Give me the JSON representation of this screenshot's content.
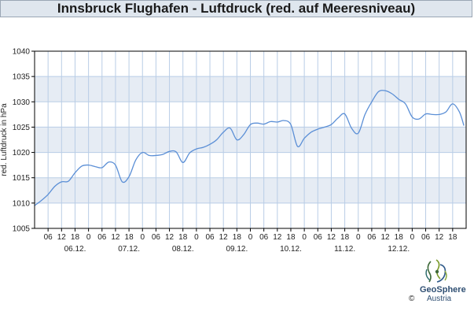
{
  "title": "Innsbruck Flughafen - Luftdruck (red. auf Meeresniveau)",
  "logo": {
    "name": "GeoSphere",
    "sub": "Austria",
    "copyright": "©"
  },
  "colors": {
    "line": "#5b8fd6",
    "band": "#e6ecf4",
    "grid": "#b9cde6",
    "title_bg": "#dfe6ee"
  },
  "chart_data": {
    "type": "line",
    "title": "Innsbruck Flughafen - Luftdruck (red. auf Meeresniveau)",
    "ylabel": "red. Luftdruck in hPa",
    "ylim": [
      1005,
      1040
    ],
    "yticks": [
      1005,
      1010,
      1015,
      1020,
      1025,
      1030,
      1035,
      1040
    ],
    "grid": true,
    "xlim_hours": [
      -6,
      186
    ],
    "hour_tick_labels": [
      "06",
      "12",
      "18",
      "0",
      "06",
      "12",
      "18",
      "0",
      "06",
      "12",
      "18",
      "0",
      "06",
      "12",
      "18",
      "0",
      "06",
      "12",
      "18",
      "0",
      "06",
      "12",
      "18",
      "0",
      "06",
      "12",
      "18",
      "0",
      "06",
      "12",
      "18"
    ],
    "date_labels": [
      "06.12.",
      "07.12.",
      "08.12.",
      "09.12.",
      "10.12.",
      "11.12.",
      "12.12."
    ],
    "series": [
      {
        "x_hours": [
          -6,
          -3,
          0,
          3,
          6,
          9,
          12,
          15,
          18,
          21,
          24,
          27,
          30,
          33,
          36,
          39,
          42,
          45,
          48,
          51,
          54,
          57,
          60,
          63,
          66,
          69,
          72,
          75,
          78,
          81,
          84,
          87,
          90,
          93,
          96,
          99,
          102,
          105,
          108,
          111,
          114,
          117,
          120,
          123,
          126,
          129,
          132,
          135,
          138,
          141,
          144,
          147,
          150,
          153,
          156,
          159,
          162,
          165,
          168,
          171,
          174,
          177,
          180,
          183,
          185
        ],
        "values": [
          1009.5,
          1010.5,
          1011.7,
          1013.3,
          1014.2,
          1014.3,
          1016.0,
          1017.3,
          1017.5,
          1017.2,
          1017.0,
          1018.1,
          1017.5,
          1014.2,
          1015.2,
          1018.5,
          1020.0,
          1019.4,
          1019.4,
          1019.6,
          1020.2,
          1020.1,
          1018.0,
          1019.9,
          1020.7,
          1021.0,
          1021.6,
          1022.5,
          1024.0,
          1024.8,
          1022.5,
          1023.5,
          1025.5,
          1025.8,
          1025.6,
          1026.1,
          1026.0,
          1026.3,
          1025.5,
          1021.2,
          1022.8,
          1024.0,
          1024.6,
          1025.0,
          1025.5,
          1026.8,
          1027.6,
          1024.8,
          1023.8,
          1027.5,
          1030.0,
          1032.0,
          1032.2,
          1031.6,
          1030.5,
          1029.6,
          1027.0,
          1026.6,
          1027.6,
          1027.5,
          1027.5,
          1028.0,
          1029.6,
          1028.0,
          1025.3
        ]
      }
    ]
  }
}
